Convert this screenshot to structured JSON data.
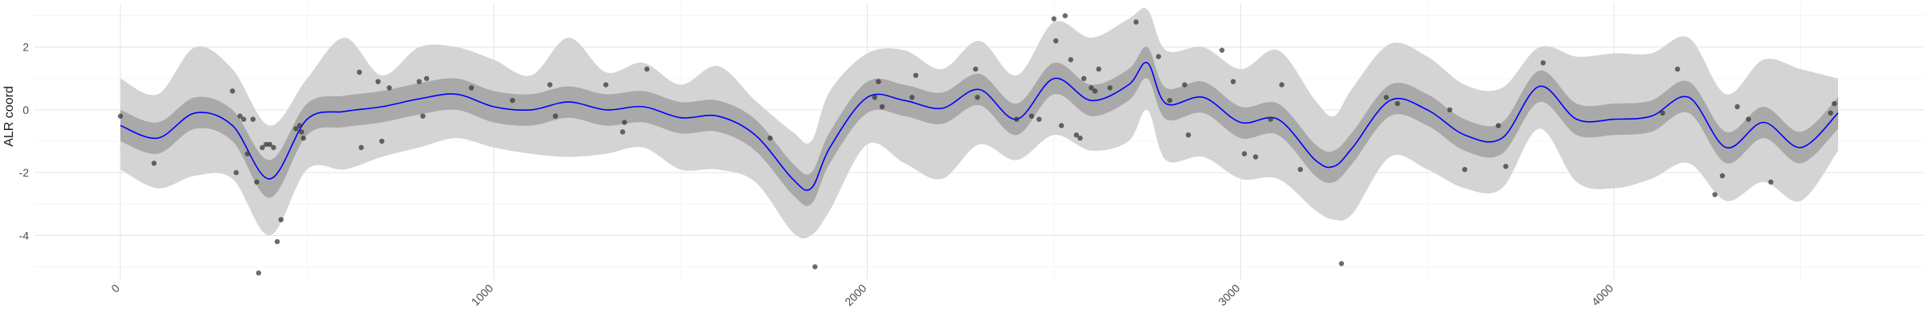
{
  "chart_data": {
    "type": "line",
    "title": "",
    "xlabel": "",
    "ylabel": "ALR coord",
    "xlim": [
      -230,
      4830
    ],
    "ylim": [
      -5.4,
      3.4
    ],
    "x_ticks": [
      0,
      1000,
      2000,
      3000,
      4000
    ],
    "x_tick_labels": [
      "0",
      "1000",
      "2000",
      "3000",
      "4000"
    ],
    "y_ticks": [
      -4,
      -2,
      0,
      2
    ],
    "y_tick_labels": [
      "-4",
      "-2",
      "0",
      "2"
    ],
    "grid": true,
    "legend": "none",
    "colors": {
      "mean_line": "#0000ff",
      "inner_band": "#a9a9a9",
      "outer_band": "#d4d4d4",
      "points": "#333333",
      "grid": "#e6e6e6"
    },
    "x": [
      0,
      100,
      200,
      300,
      400,
      500,
      600,
      700,
      800,
      900,
      1000,
      1100,
      1200,
      1300,
      1400,
      1500,
      1600,
      1700,
      1800,
      1850,
      1900,
      2000,
      2100,
      2200,
      2300,
      2400,
      2500,
      2600,
      2700,
      2750,
      2800,
      2900,
      3000,
      3100,
      3200,
      3250,
      3300,
      3400,
      3500,
      3600,
      3700,
      3800,
      3900,
      4000,
      4100,
      4200,
      4300,
      4400,
      4500,
      4600
    ],
    "series": [
      {
        "values": [
          -0.5,
          -0.9,
          -0.1,
          -0.5,
          -2.2,
          -0.3,
          -0.05,
          0.1,
          0.35,
          0.5,
          0.1,
          0.0,
          0.25,
          0.0,
          0.1,
          -0.25,
          -0.2,
          -0.8,
          -2.2,
          -2.5,
          -1.2,
          0.4,
          0.3,
          0.05,
          0.65,
          -0.3,
          1.0,
          0.3,
          0.8,
          1.5,
          0.2,
          0.4,
          -0.4,
          -0.3,
          -1.6,
          -1.8,
          -1.2,
          0.3,
          0.0,
          -0.8,
          -0.9,
          0.75,
          -0.3,
          -0.3,
          -0.2,
          0.4,
          -1.2,
          -0.4,
          -1.2,
          -0.1
        ],
        "inner_lower": [
          -1.0,
          -1.4,
          -0.6,
          -1.0,
          -2.8,
          -0.8,
          -0.55,
          -0.4,
          -0.15,
          0.0,
          -0.4,
          -0.5,
          -0.25,
          -0.5,
          -0.4,
          -0.75,
          -0.7,
          -1.3,
          -2.7,
          -3.0,
          -1.7,
          -0.1,
          -0.2,
          -0.45,
          0.15,
          -0.8,
          0.5,
          -0.2,
          0.3,
          1.0,
          -0.3,
          -0.1,
          -0.9,
          -0.8,
          -2.1,
          -2.3,
          -1.7,
          -0.2,
          -0.5,
          -1.3,
          -1.4,
          0.25,
          -0.8,
          -0.8,
          -0.7,
          -0.1,
          -1.7,
          -0.9,
          -1.7,
          -0.6
        ],
        "inner_upper": [
          0.0,
          -0.4,
          0.4,
          0.0,
          -1.6,
          0.2,
          0.45,
          0.6,
          0.85,
          1.0,
          0.6,
          0.5,
          0.75,
          0.5,
          0.6,
          0.25,
          0.3,
          -0.3,
          -1.7,
          -2.0,
          -0.7,
          0.9,
          0.8,
          0.55,
          1.15,
          0.2,
          1.5,
          0.8,
          1.3,
          2.0,
          0.7,
          0.9,
          0.1,
          0.2,
          -1.1,
          -1.3,
          -0.7,
          0.8,
          0.5,
          -0.3,
          -0.4,
          1.25,
          0.2,
          0.2,
          0.3,
          0.9,
          -0.7,
          0.1,
          -0.7,
          0.4
        ],
        "outer_lower": [
          -1.9,
          -2.5,
          -2.1,
          -2.2,
          -4.0,
          -1.9,
          -1.9,
          -1.5,
          -1.2,
          -0.9,
          -1.2,
          -1.4,
          -1.5,
          -1.4,
          -1.2,
          -1.9,
          -1.9,
          -2.3,
          -3.9,
          -4.0,
          -3.2,
          -1.1,
          -1.7,
          -2.2,
          -1.1,
          -1.6,
          -0.8,
          -1.3,
          -1.0,
          0.0,
          -1.6,
          -1.5,
          -2.2,
          -2.2,
          -3.2,
          -3.5,
          -3.3,
          -1.5,
          -1.9,
          -2.5,
          -2.5,
          -0.6,
          -2.3,
          -2.5,
          -2.2,
          -1.7,
          -2.9,
          -2.3,
          -2.9,
          -1.3
        ],
        "outer_upper": [
          1.0,
          0.5,
          2.0,
          1.3,
          -0.5,
          1.0,
          2.3,
          1.1,
          2.0,
          2.0,
          1.6,
          1.1,
          2.3,
          1.2,
          1.5,
          0.8,
          1.4,
          0.3,
          -0.7,
          -1.0,
          0.6,
          1.8,
          1.9,
          1.3,
          2.2,
          1.1,
          2.8,
          2.3,
          2.9,
          3.2,
          1.9,
          2.0,
          1.3,
          1.9,
          0.3,
          -0.2,
          0.7,
          2.1,
          1.7,
          0.8,
          0.7,
          2.0,
          1.7,
          1.8,
          1.8,
          2.3,
          0.5,
          1.6,
          1.3,
          1.0
        ]
      }
    ],
    "points": [
      [
        0,
        -0.2
      ],
      [
        90,
        -1.7
      ],
      [
        300,
        0.6
      ],
      [
        310,
        -2.0
      ],
      [
        320,
        -0.2
      ],
      [
        330,
        -0.3
      ],
      [
        340,
        -1.4
      ],
      [
        355,
        -0.3
      ],
      [
        365,
        -2.3
      ],
      [
        370,
        -5.2
      ],
      [
        380,
        -1.2
      ],
      [
        390,
        -1.1
      ],
      [
        400,
        -1.1
      ],
      [
        410,
        -1.2
      ],
      [
        420,
        -4.2
      ],
      [
        430,
        -3.5
      ],
      [
        470,
        -0.6
      ],
      [
        480,
        -0.5
      ],
      [
        485,
        -0.7
      ],
      [
        490,
        -0.9
      ],
      [
        640,
        1.2
      ],
      [
        645,
        -1.2
      ],
      [
        690,
        0.9
      ],
      [
        700,
        -1.0
      ],
      [
        720,
        0.7
      ],
      [
        800,
        0.9
      ],
      [
        810,
        -0.2
      ],
      [
        820,
        1.0
      ],
      [
        940,
        0.7
      ],
      [
        1050,
        0.3
      ],
      [
        1150,
        0.8
      ],
      [
        1165,
        -0.2
      ],
      [
        1300,
        0.8
      ],
      [
        1345,
        -0.7
      ],
      [
        1350,
        -0.4
      ],
      [
        1410,
        1.3
      ],
      [
        1740,
        -0.9
      ],
      [
        1860,
        -5.0
      ],
      [
        2020,
        0.4
      ],
      [
        2030,
        0.9
      ],
      [
        2040,
        0.1
      ],
      [
        2120,
        0.4
      ],
      [
        2130,
        1.1
      ],
      [
        2290,
        1.3
      ],
      [
        2295,
        0.4
      ],
      [
        2400,
        -0.3
      ],
      [
        2440,
        -0.2
      ],
      [
        2460,
        -0.3
      ],
      [
        2500,
        2.9
      ],
      [
        2505,
        2.2
      ],
      [
        2520,
        -0.5
      ],
      [
        2530,
        3.0
      ],
      [
        2545,
        1.6
      ],
      [
        2560,
        -0.8
      ],
      [
        2570,
        -0.9
      ],
      [
        2580,
        1.0
      ],
      [
        2600,
        0.7
      ],
      [
        2610,
        0.6
      ],
      [
        2620,
        1.3
      ],
      [
        2650,
        0.7
      ],
      [
        2720,
        2.8
      ],
      [
        2780,
        1.7
      ],
      [
        2810,
        0.3
      ],
      [
        2850,
        0.8
      ],
      [
        2860,
        -0.8
      ],
      [
        2950,
        1.9
      ],
      [
        2980,
        0.9
      ],
      [
        3010,
        -1.4
      ],
      [
        3040,
        -1.5
      ],
      [
        3080,
        -0.3
      ],
      [
        3110,
        0.8
      ],
      [
        3160,
        -1.9
      ],
      [
        3270,
        -4.9
      ],
      [
        3390,
        0.4
      ],
      [
        3420,
        0.2
      ],
      [
        3560,
        0.0
      ],
      [
        3600,
        -1.9
      ],
      [
        3690,
        -0.5
      ],
      [
        3710,
        -1.8
      ],
      [
        3810,
        1.5
      ],
      [
        4130,
        -0.1
      ],
      [
        4170,
        1.3
      ],
      [
        4270,
        -2.7
      ],
      [
        4290,
        -2.1
      ],
      [
        4330,
        0.1
      ],
      [
        4360,
        -0.3
      ],
      [
        4420,
        -2.3
      ],
      [
        4580,
        -0.1
      ],
      [
        4590,
        0.2
      ]
    ]
  }
}
